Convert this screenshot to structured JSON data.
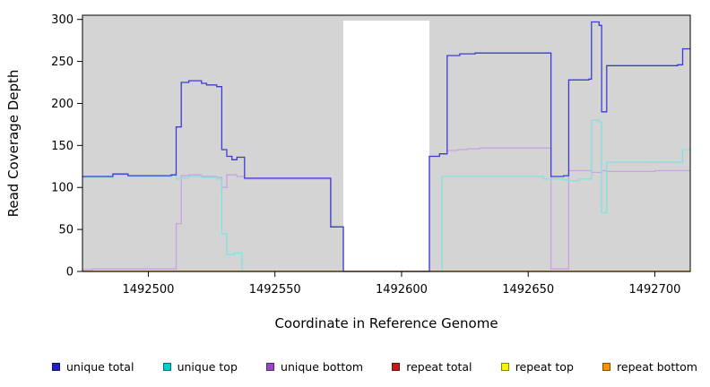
{
  "chart_data": {
    "type": "line",
    "subtype": "step",
    "title": "",
    "xlabel": "Coordinate in Reference Genome",
    "ylabel": "Read Coverage Depth",
    "xlim": [
      1492474,
      1492714
    ],
    "ylim": [
      0,
      305
    ],
    "x_ticks": [
      1492500,
      1492550,
      1492600,
      1492650,
      1492700
    ],
    "y_ticks": [
      0,
      50,
      100,
      150,
      200,
      250,
      300
    ],
    "plot_background_color": "#d4d4d4",
    "gap_region": {
      "x0": 1492577,
      "x1": 1492611,
      "color": "#ffffff"
    },
    "grid": false,
    "legend_position": "bottom",
    "series": [
      {
        "name": "repeat total",
        "color": "#cc1111",
        "points": [
          [
            1492474,
            0
          ]
        ]
      },
      {
        "name": "repeat top",
        "color": "#f2f200",
        "points": [
          [
            1492474,
            0
          ]
        ]
      },
      {
        "name": "unique bottom",
        "color": "#c9a2e2",
        "points": [
          [
            1492474,
            2
          ],
          [
            1492478,
            3
          ],
          [
            1492510,
            3
          ],
          [
            1492511,
            57
          ],
          [
            1492513,
            114
          ],
          [
            1492516,
            115
          ],
          [
            1492521,
            113
          ],
          [
            1492527,
            112
          ],
          [
            1492529,
            100
          ],
          [
            1492531,
            115
          ],
          [
            1492535,
            113
          ],
          [
            1492538,
            110
          ],
          [
            1492570,
            110
          ],
          [
            1492572,
            53
          ],
          [
            1492577,
            0
          ],
          [
            1492611,
            137
          ],
          [
            1492615,
            140
          ],
          [
            1492618,
            144
          ],
          [
            1492622,
            145
          ],
          [
            1492626,
            146
          ],
          [
            1492631,
            147
          ],
          [
            1492657,
            147
          ],
          [
            1492659,
            3
          ],
          [
            1492664,
            3
          ],
          [
            1492666,
            120
          ],
          [
            1492675,
            118
          ],
          [
            1492679,
            120
          ],
          [
            1492681,
            119
          ],
          [
            1492700,
            120
          ]
        ]
      },
      {
        "name": "unique top",
        "color": "#82e2e2",
        "points": [
          [
            1492474,
            112
          ],
          [
            1492486,
            115
          ],
          [
            1492492,
            113
          ],
          [
            1492509,
            114
          ],
          [
            1492511,
            110
          ],
          [
            1492513,
            111
          ],
          [
            1492516,
            113
          ],
          [
            1492521,
            112
          ],
          [
            1492527,
            110
          ],
          [
            1492529,
            45
          ],
          [
            1492531,
            20
          ],
          [
            1492534,
            22
          ],
          [
            1492537,
            0
          ],
          [
            1492616,
            113
          ],
          [
            1492653,
            113
          ],
          [
            1492656,
            110
          ],
          [
            1492664,
            109
          ],
          [
            1492666,
            108
          ],
          [
            1492670,
            110
          ],
          [
            1492675,
            180
          ],
          [
            1492678,
            178
          ],
          [
            1492679,
            70
          ],
          [
            1492681,
            130
          ],
          [
            1492705,
            130
          ],
          [
            1492711,
            145
          ]
        ]
      },
      {
        "name": "unique total",
        "color": "#3c3cd4",
        "points": [
          [
            1492474,
            113
          ],
          [
            1492486,
            116
          ],
          [
            1492492,
            114
          ],
          [
            1492509,
            115
          ],
          [
            1492511,
            172
          ],
          [
            1492513,
            225
          ],
          [
            1492516,
            227
          ],
          [
            1492521,
            224
          ],
          [
            1492523,
            222
          ],
          [
            1492527,
            220
          ],
          [
            1492529,
            145
          ],
          [
            1492531,
            137
          ],
          [
            1492533,
            133
          ],
          [
            1492535,
            136
          ],
          [
            1492538,
            111
          ],
          [
            1492570,
            111
          ],
          [
            1492572,
            53
          ],
          [
            1492577,
            0
          ],
          [
            1492611,
            137
          ],
          [
            1492615,
            140
          ],
          [
            1492618,
            257
          ],
          [
            1492623,
            259
          ],
          [
            1492629,
            260
          ],
          [
            1492657,
            260
          ],
          [
            1492659,
            113
          ],
          [
            1492664,
            114
          ],
          [
            1492666,
            228
          ],
          [
            1492674,
            229
          ],
          [
            1492675,
            297
          ],
          [
            1492678,
            293
          ],
          [
            1492679,
            190
          ],
          [
            1492681,
            245
          ],
          [
            1492709,
            246
          ],
          [
            1492711,
            265
          ]
        ]
      },
      {
        "name": "repeat bottom",
        "color": "#ff9d00",
        "points": [
          [
            1492474,
            0
          ]
        ]
      }
    ],
    "legend": [
      {
        "label": "unique total",
        "color": "#2121c8"
      },
      {
        "label": "unique top",
        "color": "#00cdcd"
      },
      {
        "label": "unique bottom",
        "color": "#9944cc"
      },
      {
        "label": "repeat total",
        "color": "#c41a1a"
      },
      {
        "label": "repeat top",
        "color": "#f5f500"
      },
      {
        "label": "repeat bottom",
        "color": "#f59300"
      }
    ]
  }
}
